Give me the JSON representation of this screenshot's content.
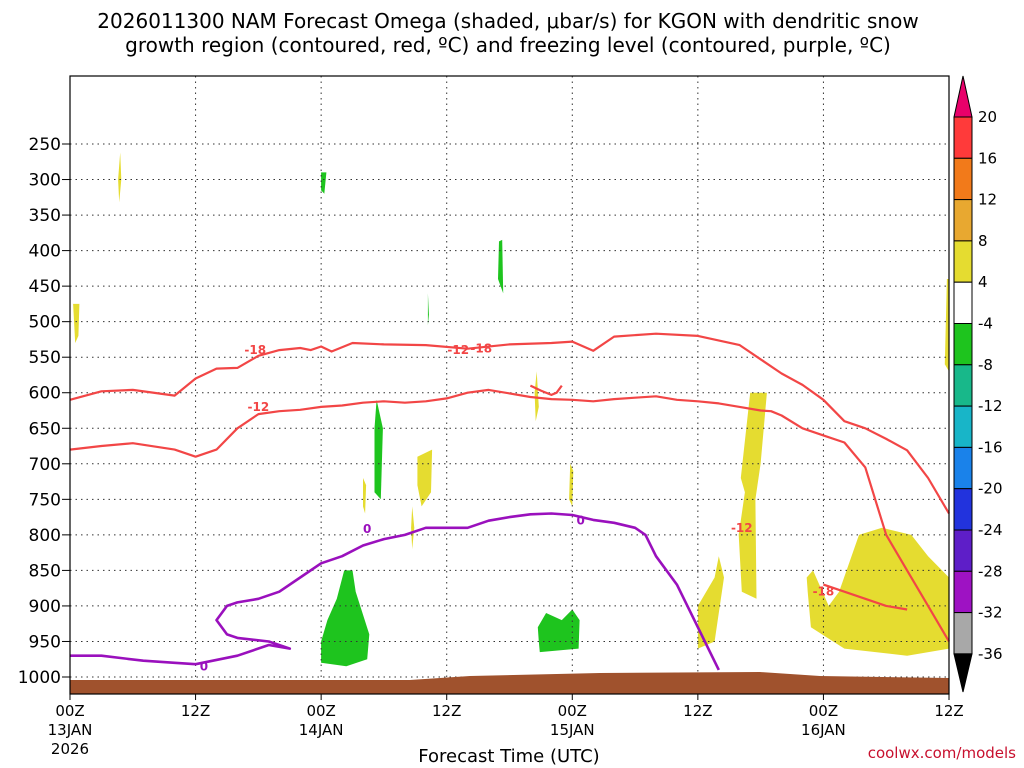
{
  "chart_data": {
    "type": "heatmap",
    "title_line1": "2026011300 NAM Forecast Omega (shaded, μbar/s) for KGON with dendritic snow",
    "title_line2": "growth region (contoured, red, ºC) and freezing level (contoured, purple, ºC)",
    "xlabel": "Forecast Time (UTC)",
    "credit": "coolwx.com/models",
    "x_range_hours": [
      0,
      84
    ],
    "y_range_hpa": [
      1040,
      170
    ],
    "x_ticks": [
      {
        "hour": 0,
        "l1": "00Z",
        "l2": "13JAN",
        "l3": "2026"
      },
      {
        "hour": 12,
        "l1": "12Z",
        "l2": "",
        "l3": ""
      },
      {
        "hour": 24,
        "l1": "00Z",
        "l2": "14JAN",
        "l3": ""
      },
      {
        "hour": 36,
        "l1": "12Z",
        "l2": "",
        "l3": ""
      },
      {
        "hour": 48,
        "l1": "00Z",
        "l2": "15JAN",
        "l3": ""
      },
      {
        "hour": 60,
        "l1": "12Z",
        "l2": "",
        "l3": ""
      },
      {
        "hour": 72,
        "l1": "00Z",
        "l2": "16JAN",
        "l3": ""
      },
      {
        "hour": 84,
        "l1": "12Z",
        "l2": "",
        "l3": ""
      }
    ],
    "y_ticks": [
      250,
      300,
      350,
      400,
      450,
      500,
      550,
      600,
      650,
      700,
      750,
      800,
      850,
      900,
      950,
      1000
    ],
    "colorbar": {
      "labels": [
        "20",
        "16",
        "12",
        "8",
        "4",
        "-4",
        "-8",
        "-12",
        "-16",
        "-20",
        "-24",
        "-28",
        "-32",
        "-36"
      ],
      "bins": [
        {
          "color": "#e8006a",
          "range": ">20"
        },
        {
          "color": "#ff3a3a",
          "range": "16 to 20"
        },
        {
          "color": "#f27a1a",
          "range": "12 to 16"
        },
        {
          "color": "#e8a830",
          "range": "8 to 12"
        },
        {
          "color": "#e5dc30",
          "range": "4 to 8"
        },
        {
          "color": "#ffffff",
          "range": "-4 to 4"
        },
        {
          "color": "#1ec41e",
          "range": "-8 to -4"
        },
        {
          "color": "#18b88a",
          "range": "-12 to -8"
        },
        {
          "color": "#18b5c8",
          "range": "-16 to -12"
        },
        {
          "color": "#1a82ea",
          "range": "-20 to -16"
        },
        {
          "color": "#2233dd",
          "range": "-24 to -20"
        },
        {
          "color": "#5e1ec8",
          "range": "-28 to -24"
        },
        {
          "color": "#9e12c3",
          "range": "-32 to -28"
        },
        {
          "color": "#a8a8a8",
          "range": "-36 to -32"
        },
        {
          "color": "#000000",
          "range": "<-36"
        }
      ]
    },
    "ground_color": "#a0522d",
    "omega_areas": [
      {
        "value": 6,
        "points": [
          [
            0.3,
            475
          ],
          [
            0.9,
            475
          ],
          [
            0.8,
            520
          ],
          [
            0.5,
            530
          ]
        ]
      },
      {
        "value": -6,
        "points": [
          [
            24.0,
            290
          ],
          [
            24.5,
            290
          ],
          [
            24.3,
            320
          ],
          [
            24.0,
            315
          ]
        ]
      },
      {
        "value": 6,
        "points": [
          [
            4.8,
            262
          ],
          [
            4.9,
            300
          ],
          [
            4.7,
            332
          ],
          [
            4.6,
            300
          ]
        ]
      },
      {
        "value": -6,
        "points": [
          [
            41.0,
            387
          ],
          [
            41.3,
            385
          ],
          [
            41.4,
            460
          ],
          [
            40.9,
            440
          ]
        ]
      },
      {
        "value": -6,
        "points": [
          [
            34.2,
            460
          ],
          [
            34.3,
            490
          ],
          [
            34.2,
            505
          ]
        ]
      },
      {
        "value": -6,
        "points": [
          [
            29.3,
            610
          ],
          [
            29.9,
            650
          ],
          [
            29.7,
            750
          ],
          [
            29.1,
            740
          ],
          [
            29.1,
            650
          ]
        ]
      },
      {
        "value": 6,
        "points": [
          [
            44.6,
            570
          ],
          [
            44.8,
            620
          ],
          [
            44.5,
            640
          ],
          [
            44.4,
            600
          ]
        ]
      },
      {
        "value": 6,
        "points": [
          [
            33.2,
            690
          ],
          [
            34.6,
            680
          ],
          [
            34.5,
            740
          ],
          [
            33.6,
            760
          ],
          [
            33.2,
            730
          ]
        ]
      },
      {
        "value": 6,
        "points": [
          [
            28.0,
            720
          ],
          [
            28.3,
            730
          ],
          [
            28.2,
            770
          ],
          [
            28.0,
            760
          ]
        ]
      },
      {
        "value": 6,
        "points": [
          [
            32.7,
            760
          ],
          [
            32.9,
            790
          ],
          [
            32.7,
            820
          ],
          [
            32.6,
            790
          ]
        ]
      },
      {
        "value": 6,
        "points": [
          [
            47.8,
            700
          ],
          [
            48.1,
            710
          ],
          [
            48.0,
            760
          ],
          [
            47.7,
            750
          ]
        ]
      },
      {
        "value": 6,
        "points": [
          [
            65.0,
            600
          ],
          [
            66.6,
            600
          ],
          [
            66.0,
            700
          ],
          [
            65.5,
            750
          ],
          [
            65.6,
            890
          ],
          [
            64.2,
            880
          ],
          [
            63.9,
            800
          ],
          [
            64.5,
            740
          ],
          [
            64.1,
            720
          ]
        ]
      },
      {
        "value": 6,
        "points": [
          [
            60.0,
            900
          ],
          [
            61.6,
            860
          ],
          [
            62.0,
            830
          ],
          [
            62.5,
            860
          ],
          [
            61.6,
            950
          ],
          [
            60.0,
            960
          ]
        ]
      },
      {
        "value": 6,
        "points": [
          [
            70.4,
            860
          ],
          [
            71.0,
            850
          ],
          [
            72.5,
            900
          ],
          [
            73.5,
            880
          ],
          [
            75.4,
            800
          ],
          [
            77.6,
            790
          ],
          [
            80.4,
            800
          ],
          [
            82.0,
            830
          ],
          [
            84.0,
            860
          ],
          [
            84.0,
            960
          ],
          [
            80.0,
            970
          ],
          [
            74.0,
            960
          ],
          [
            70.8,
            930
          ],
          [
            70.5,
            880
          ]
        ]
      },
      {
        "value": 6,
        "points": [
          [
            83.8,
            440
          ],
          [
            84.0,
            440
          ],
          [
            84.0,
            570
          ],
          [
            83.6,
            560
          ]
        ]
      },
      {
        "value": -6,
        "points": [
          [
            24.0,
            950
          ],
          [
            24.6,
            920
          ],
          [
            25.5,
            890
          ],
          [
            26.2,
            850
          ],
          [
            27.0,
            850
          ],
          [
            27.3,
            880
          ],
          [
            28.6,
            940
          ],
          [
            28.4,
            975
          ],
          [
            26.4,
            985
          ],
          [
            24.0,
            980
          ]
        ]
      },
      {
        "value": -6,
        "points": [
          [
            44.7,
            930
          ],
          [
            45.5,
            910
          ],
          [
            47.0,
            920
          ],
          [
            48.0,
            905
          ],
          [
            48.7,
            920
          ],
          [
            48.6,
            960
          ],
          [
            44.9,
            965
          ],
          [
            44.8,
            950
          ]
        ]
      }
    ],
    "contour_labels": [
      "-18",
      "-12",
      "-12",
      "-18",
      "-12",
      "-18",
      "0",
      "0",
      "0"
    ],
    "dgz_lines": [
      {
        "value": -18,
        "points": [
          [
            0,
            610
          ],
          [
            3,
            598
          ],
          [
            6,
            596
          ],
          [
            10,
            604
          ],
          [
            12,
            580
          ],
          [
            14,
            566
          ],
          [
            16,
            565
          ],
          [
            18,
            548
          ],
          [
            20,
            540
          ],
          [
            22,
            537
          ],
          [
            23,
            540
          ],
          [
            24,
            535
          ],
          [
            25,
            542
          ],
          [
            27,
            530
          ],
          [
            30,
            532
          ],
          [
            34,
            533
          ],
          [
            38,
            538
          ],
          [
            42,
            532
          ],
          [
            46,
            530
          ],
          [
            48,
            528
          ],
          [
            50,
            541
          ],
          [
            52,
            521
          ],
          [
            56,
            517
          ],
          [
            60,
            520
          ],
          [
            64,
            533
          ],
          [
            66,
            553
          ],
          [
            68,
            573
          ],
          [
            70,
            589
          ],
          [
            72,
            610
          ],
          [
            74,
            640
          ],
          [
            76,
            650
          ],
          [
            78,
            665
          ],
          [
            80,
            681
          ],
          [
            82,
            720
          ],
          [
            84,
            770
          ]
        ]
      },
      {
        "value": -12,
        "points": [
          [
            0,
            680
          ],
          [
            3,
            675
          ],
          [
            6,
            671
          ],
          [
            10,
            680
          ],
          [
            12,
            690
          ],
          [
            14,
            680
          ],
          [
            16,
            650
          ],
          [
            18,
            630
          ],
          [
            20,
            626
          ],
          [
            22,
            624
          ],
          [
            24,
            620
          ],
          [
            26,
            618
          ],
          [
            28,
            614
          ],
          [
            30,
            612
          ],
          [
            32,
            614
          ],
          [
            34,
            612
          ],
          [
            36,
            608
          ],
          [
            38,
            600
          ],
          [
            40,
            596
          ],
          [
            42,
            601
          ],
          [
            44,
            606
          ],
          [
            46,
            609
          ],
          [
            48,
            610
          ],
          [
            50,
            612
          ],
          [
            52,
            609
          ],
          [
            54,
            607
          ],
          [
            56,
            605
          ],
          [
            58,
            610
          ],
          [
            60,
            612
          ],
          [
            62,
            615
          ],
          [
            64,
            620
          ],
          [
            66,
            625
          ],
          [
            67,
            626
          ],
          [
            68,
            632
          ],
          [
            70,
            650
          ],
          [
            72,
            660
          ],
          [
            74,
            670
          ],
          [
            76,
            705
          ],
          [
            78,
            800
          ],
          [
            80,
            850
          ],
          [
            82,
            900
          ],
          [
            84,
            950
          ]
        ]
      },
      {
        "value": -12,
        "points": [
          [
            44,
            590
          ],
          [
            45,
            597
          ],
          [
            46,
            603
          ],
          [
            46.5,
            600
          ],
          [
            47,
            590
          ]
        ]
      },
      {
        "value": -18,
        "points": [
          [
            72,
            870
          ],
          [
            74,
            880
          ],
          [
            76,
            890
          ],
          [
            78,
            900
          ],
          [
            80,
            905
          ]
        ]
      }
    ],
    "freezing_lines": [
      {
        "value": 0,
        "points": [
          [
            0,
            970
          ],
          [
            3,
            970
          ],
          [
            7,
            977
          ],
          [
            10,
            980
          ],
          [
            12,
            982
          ],
          [
            16,
            970
          ],
          [
            19,
            955
          ],
          [
            21,
            960
          ],
          [
            19,
            950
          ],
          [
            16,
            945
          ],
          [
            15,
            940
          ],
          [
            14,
            920
          ],
          [
            15,
            900
          ],
          [
            16,
            895
          ],
          [
            18,
            890
          ],
          [
            20,
            880
          ],
          [
            22,
            860
          ],
          [
            24,
            840
          ],
          [
            26,
            830
          ],
          [
            28,
            815
          ],
          [
            30,
            806
          ],
          [
            32,
            800
          ],
          [
            34,
            790
          ],
          [
            36,
            790
          ],
          [
            38,
            790
          ],
          [
            40,
            780
          ],
          [
            42,
            775
          ],
          [
            44,
            771
          ],
          [
            46,
            770
          ],
          [
            48,
            772
          ],
          [
            50,
            779
          ],
          [
            52,
            783
          ],
          [
            54,
            790
          ],
          [
            55,
            800
          ],
          [
            56,
            830
          ],
          [
            58,
            870
          ],
          [
            59,
            900
          ],
          [
            60,
            930
          ],
          [
            61,
            960
          ],
          [
            62,
            990
          ]
        ]
      }
    ]
  }
}
